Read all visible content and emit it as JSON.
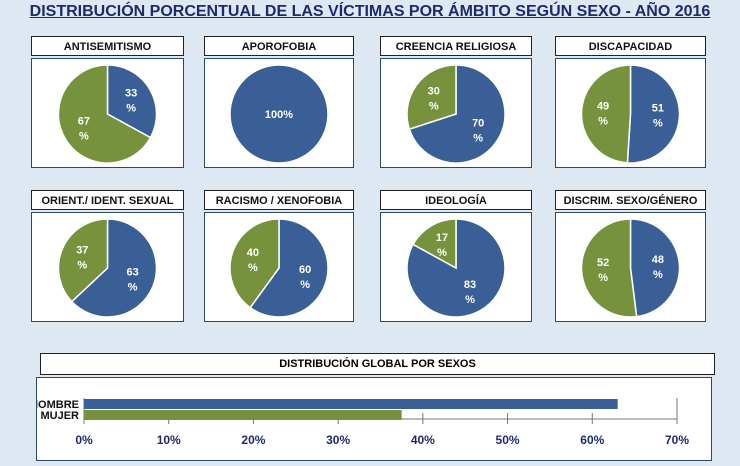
{
  "title": "DISTRIBUCIÓN PORCENTUAL DE LAS VÍCTIMAS POR ÁMBITO SEGÚN SEXO - AÑO 2016",
  "colors": {
    "hombre": "#3a5f96",
    "mujer": "#77923c"
  },
  "chart_data": [
    {
      "type": "pie",
      "title": "ANTISEMITISMO",
      "series": [
        {
          "name": "HOMBRE",
          "value": 33,
          "label": [
            "33",
            "%"
          ]
        },
        {
          "name": "MUJER",
          "value": 67,
          "label": [
            "67",
            "%"
          ]
        }
      ]
    },
    {
      "type": "pie",
      "title": "APOROFOBIA",
      "series": [
        {
          "name": "HOMBRE",
          "value": 100,
          "label": [
            "100%"
          ]
        },
        {
          "name": "MUJER",
          "value": 0,
          "label": []
        }
      ]
    },
    {
      "type": "pie",
      "title": "CREENCIA RELIGIOSA",
      "series": [
        {
          "name": "HOMBRE",
          "value": 70,
          "label": [
            "70",
            "%"
          ]
        },
        {
          "name": "MUJER",
          "value": 30,
          "label": [
            "30",
            "%"
          ]
        }
      ]
    },
    {
      "type": "pie",
      "title": "DISCAPACIDAD",
      "series": [
        {
          "name": "HOMBRE",
          "value": 51,
          "label": [
            "51",
            "%"
          ]
        },
        {
          "name": "MUJER",
          "value": 49,
          "label": [
            "49",
            "%"
          ]
        }
      ]
    },
    {
      "type": "pie",
      "title": "ORIENT./ IDENT. SEXUAL",
      "series": [
        {
          "name": "HOMBRE",
          "value": 63,
          "label": [
            "63",
            "%"
          ]
        },
        {
          "name": "MUJER",
          "value": 37,
          "label": [
            "37",
            "%"
          ]
        }
      ]
    },
    {
      "type": "pie",
      "title": "RACISMO / XENOFOBIA",
      "series": [
        {
          "name": "HOMBRE",
          "value": 60,
          "label": [
            "60",
            "%"
          ]
        },
        {
          "name": "MUJER",
          "value": 40,
          "label": [
            "40",
            "%"
          ]
        }
      ]
    },
    {
      "type": "pie",
      "title": "IDEOLOGÍA",
      "series": [
        {
          "name": "HOMBRE",
          "value": 83,
          "label": [
            "83",
            "%"
          ]
        },
        {
          "name": "MUJER",
          "value": 17,
          "label": [
            "17",
            "%"
          ]
        }
      ]
    },
    {
      "type": "pie",
      "title": "DISCRIM. SEXO/GÉNERO",
      "series": [
        {
          "name": "HOMBRE",
          "value": 48,
          "label": [
            "48",
            "%"
          ]
        },
        {
          "name": "MUJER",
          "value": 52,
          "label": [
            "52",
            "%"
          ]
        }
      ]
    },
    {
      "type": "bar",
      "orientation": "horizontal",
      "title": "DISTRIBUCIÓN GLOBAL POR SEXOS",
      "categories": [
        "HOMBRE",
        "MUJER"
      ],
      "values": [
        63,
        37.5
      ],
      "xlim": [
        0,
        70
      ],
      "ticks": [
        "0%",
        "10%",
        "20%",
        "30%",
        "40%",
        "50%",
        "60%",
        "70%"
      ]
    }
  ]
}
